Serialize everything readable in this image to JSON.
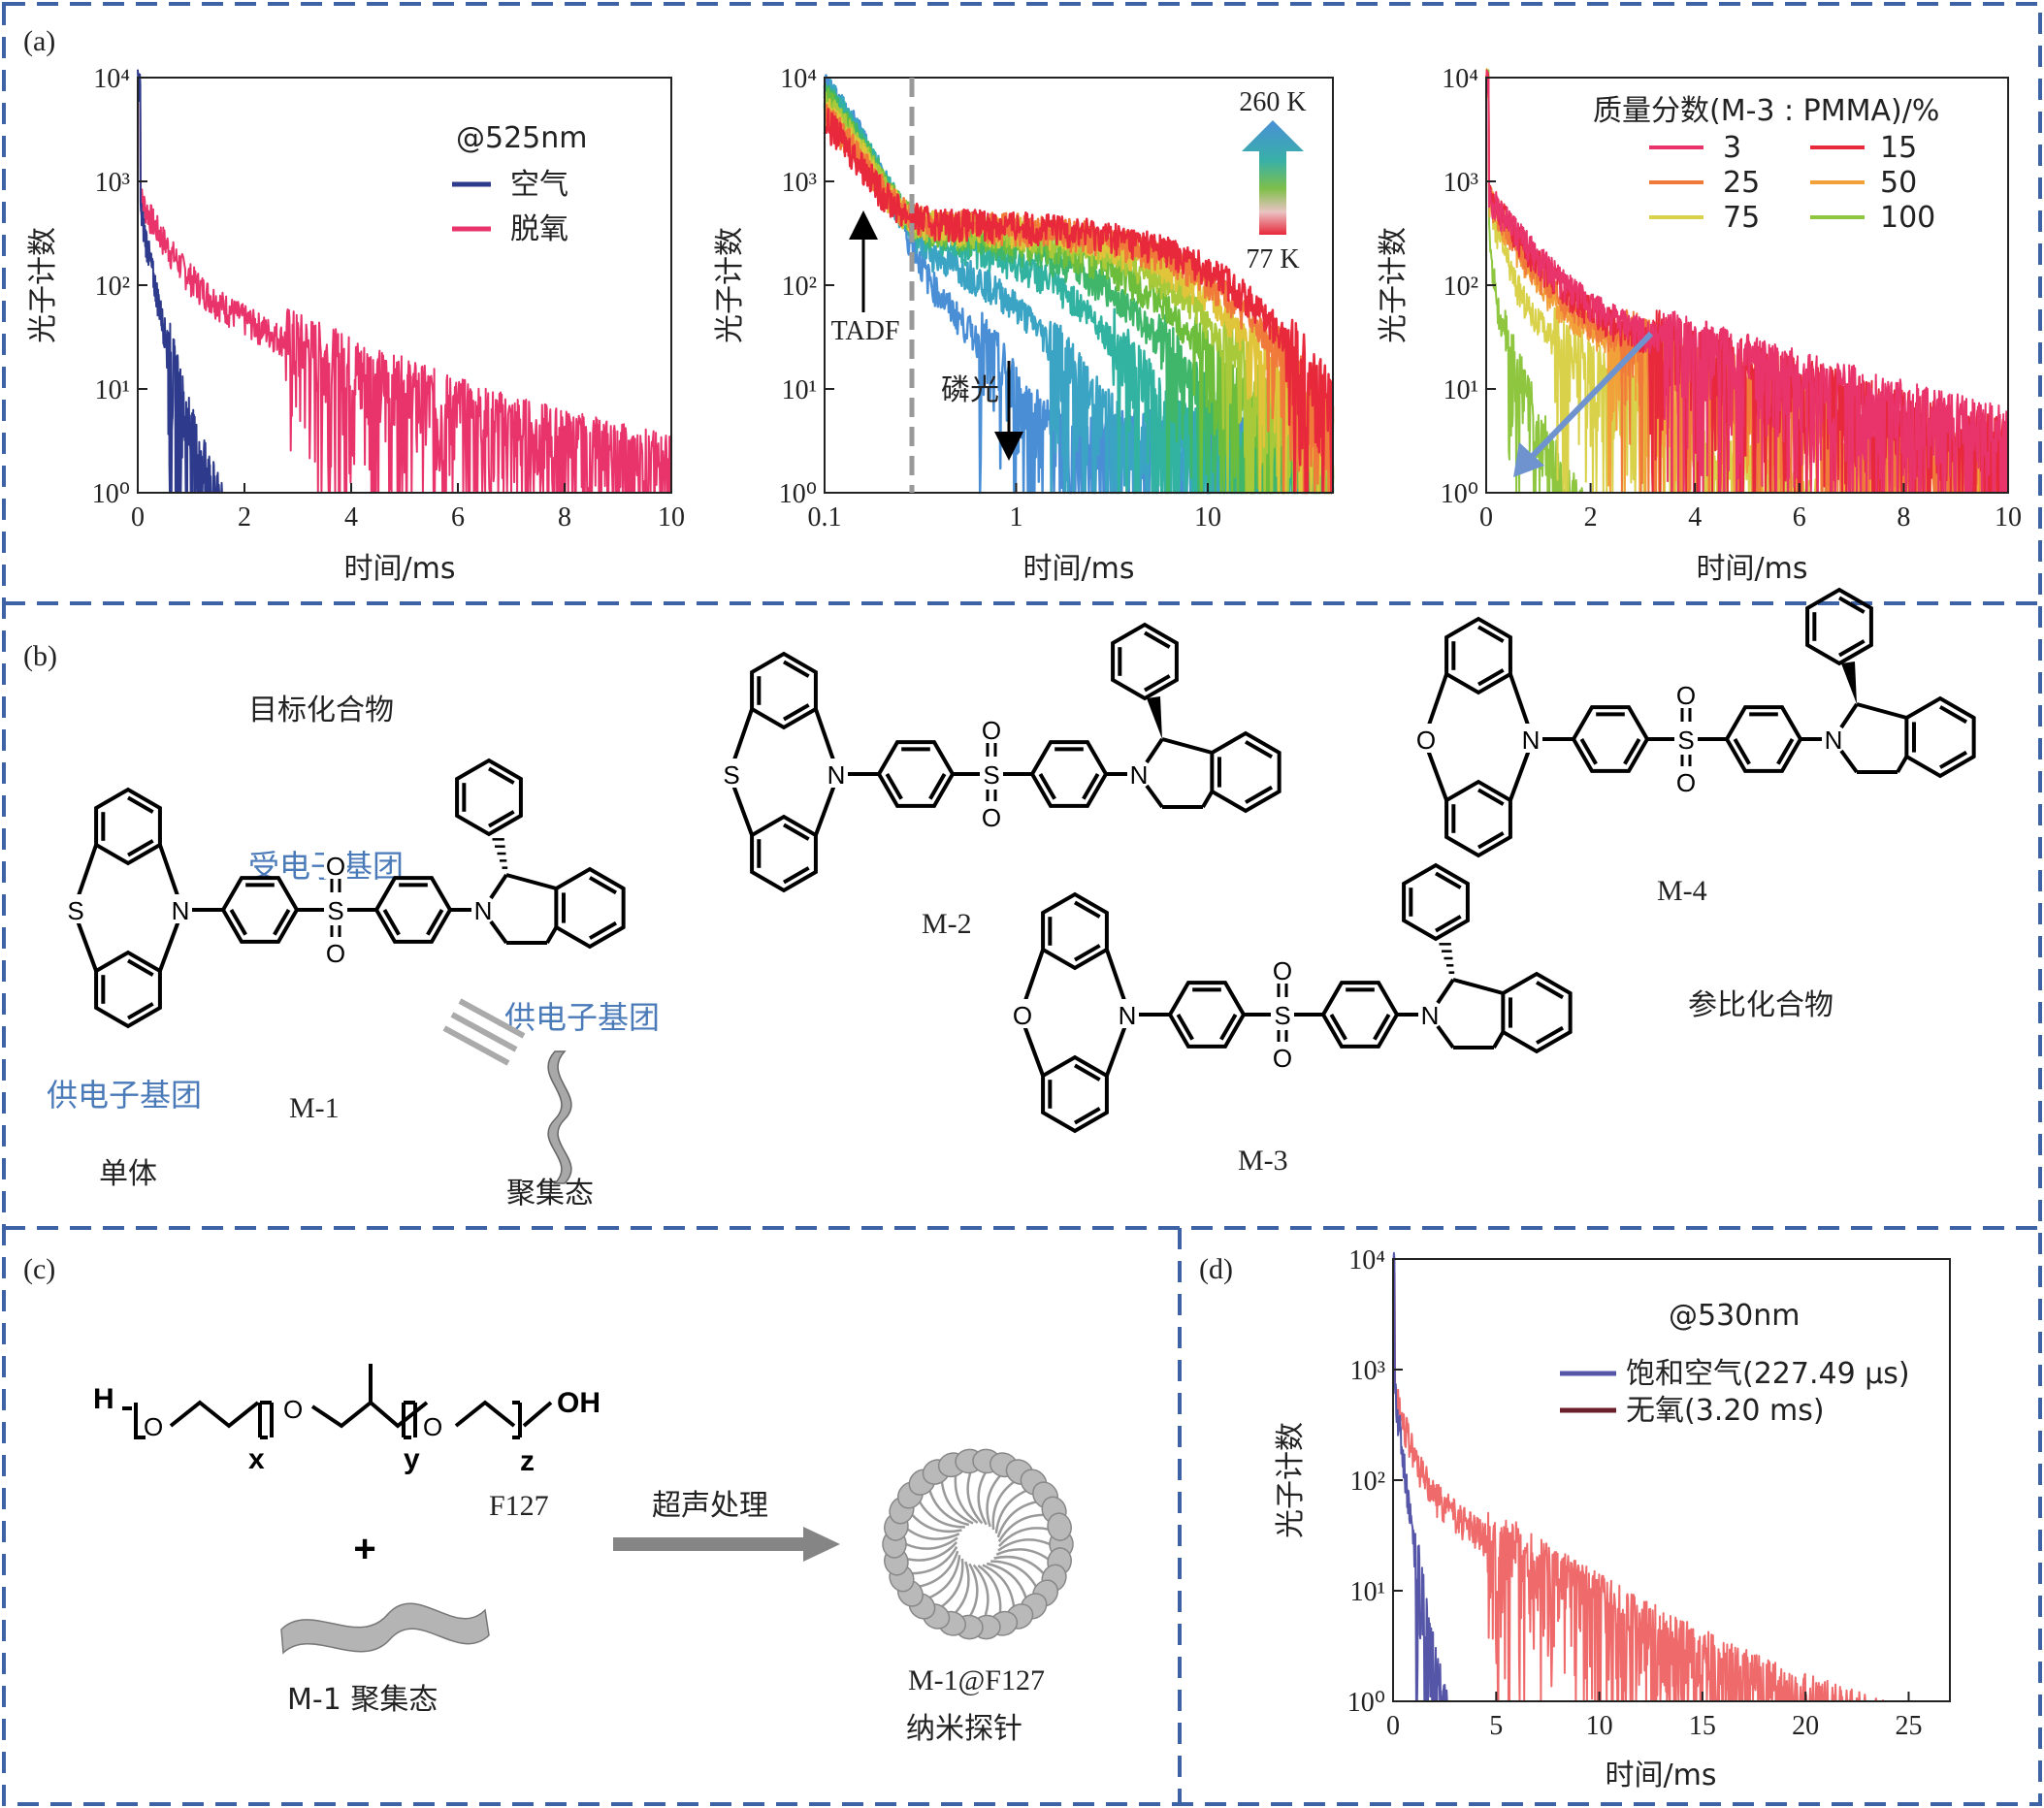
{
  "panels": {
    "a": "(a)",
    "b": "(b)",
    "c": "(c)",
    "d": "(d)"
  },
  "colors": {
    "dash": "#3d63a6",
    "air": "#2e3a8c",
    "deox": "#e8336b",
    "air_d": "#5656a8",
    "deox_d": "#ef6a6a",
    "temp_high": "#4a8fd6",
    "temp_low": "#e8283b",
    "arrow": "#6f93cf",
    "gray_arrow": "#858585",
    "mol_blue": "#4a7ab8"
  },
  "chart_data": [
    {
      "type": "line",
      "id": "a1",
      "xlabel": "时间/ms",
      "ylabel": "光子计数",
      "xlim": [
        0,
        10
      ],
      "ylim": [
        1,
        10000
      ],
      "yscale": "log",
      "xticks": [
        "0",
        "2",
        "4",
        "6",
        "8",
        "10"
      ],
      "yticks": [
        "10⁰",
        "10¹",
        "10²",
        "10³",
        "10⁴"
      ],
      "legend_title": "@525nm",
      "series": [
        {
          "name": "空气",
          "color": "#2e3a8c",
          "tau_ms": 0.23,
          "noise_floor": 1
        },
        {
          "name": "脱氧",
          "color": "#e8336b",
          "tau_ms": 2.2,
          "noise_floor": 1
        }
      ]
    },
    {
      "type": "line",
      "id": "a2",
      "xlabel": "时间/ms",
      "ylabel": "光子计数",
      "xscale": "log",
      "yscale": "log",
      "xlim": [
        0.1,
        45
      ],
      "ylim": [
        1,
        10000
      ],
      "xticks": [
        "0.1",
        "1",
        "10"
      ],
      "yticks": [
        "10⁰",
        "10¹",
        "10²",
        "10³",
        "10⁴"
      ],
      "temp_labels": [
        "260 K",
        "77 K"
      ],
      "annotations": [
        "TADF",
        "磷光"
      ],
      "series_count": 9
    },
    {
      "type": "line",
      "id": "a3",
      "xlabel": "时间/ms",
      "ylabel": "光子计数",
      "xlim": [
        0,
        10
      ],
      "ylim": [
        1,
        10000
      ],
      "yscale": "log",
      "xticks": [
        "0",
        "2",
        "4",
        "6",
        "8",
        "10"
      ],
      "yticks": [
        "10⁰",
        "10¹",
        "10²",
        "10³",
        "10⁴"
      ],
      "legend_title": "质量分数(M-3 : PMMA)/%",
      "series": [
        {
          "name": "3",
          "color": "#e8336b"
        },
        {
          "name": "15",
          "color": "#e8283b"
        },
        {
          "name": "25",
          "color": "#f07a3a"
        },
        {
          "name": "50",
          "color": "#f2a03a"
        },
        {
          "name": "75",
          "color": "#d9d14a"
        },
        {
          "name": "100",
          "color": "#8ec63f"
        }
      ]
    },
    {
      "type": "line",
      "id": "d",
      "xlabel": "时间/ms",
      "ylabel": "光子计数",
      "xlim": [
        0,
        27
      ],
      "ylim": [
        1,
        10000
      ],
      "yscale": "log",
      "xticks": [
        "0",
        "5",
        "10",
        "15",
        "20",
        "25"
      ],
      "yticks": [
        "10⁰",
        "10¹",
        "10²",
        "10³",
        "10⁴"
      ],
      "legend_title": "@530nm",
      "series": [
        {
          "name": "饱和空气(227.49 μs)",
          "color": "#5656a8",
          "tau_ms": 0.227
        },
        {
          "name": "无氧(3.20 ms)",
          "color": "#6b1f2a",
          "tau_ms": 3.2
        }
      ]
    }
  ],
  "panel_b": {
    "target": "目标化合物",
    "acceptor": "受电子基团",
    "donor_right": "供电子基团",
    "donor_left": "供电子基团",
    "m1": "M-1",
    "m2": "M-2",
    "m3": "M-3",
    "m4": "M-4",
    "monomer": "单体",
    "aggregate": "聚集态",
    "reference": "参比化合物"
  },
  "panel_c": {
    "f127": "F127",
    "plus": "+",
    "sonication": "超声处理",
    "m1_agg": "M-1 聚集态",
    "probe_name": "M-1@F127",
    "probe_desc": "纳米探针",
    "x": "x",
    "y": "y",
    "z": "z",
    "H": "H",
    "OH": "OH",
    "O": "O"
  }
}
